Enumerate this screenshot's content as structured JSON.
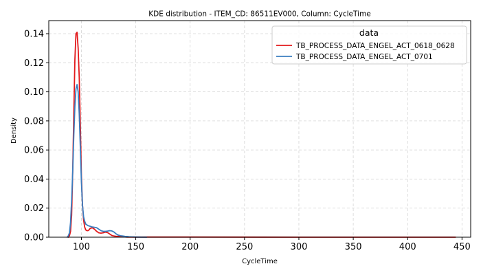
{
  "chart_data": {
    "type": "line",
    "title": "KDE distribution - ITEM_CD: 86511EV000, Column: CycleTime",
    "xlabel": "CycleTime",
    "ylabel": "Density",
    "xlim": [
      70,
      458
    ],
    "ylim": [
      0,
      0.149
    ],
    "xticks": [
      100,
      150,
      200,
      250,
      300,
      350,
      400,
      450
    ],
    "yticks": [
      0.0,
      0.02,
      0.04,
      0.06,
      0.08,
      0.1,
      0.12,
      0.14
    ],
    "grid": true,
    "legend": {
      "title": "data",
      "position": "top-right"
    },
    "series": [
      {
        "name": "TB_PROCESS_DATA_ENGEL_ACT_0618_0628",
        "color": "#e31a1c",
        "x": [
          88,
          89,
          90,
          91,
          92,
          93,
          94,
          95,
          96,
          97,
          98,
          99,
          100,
          101,
          102,
          103,
          104,
          105,
          106,
          107,
          108,
          110,
          112,
          114,
          116,
          118,
          120,
          122,
          124,
          126,
          128,
          130,
          132,
          134,
          136,
          138,
          140,
          142,
          145,
          150,
          160,
          200,
          300,
          400,
          444
        ],
        "y": [
          0.0,
          0.001,
          0.004,
          0.015,
          0.045,
          0.085,
          0.122,
          0.14,
          0.141,
          0.13,
          0.11,
          0.078,
          0.042,
          0.022,
          0.012,
          0.007,
          0.005,
          0.0045,
          0.0045,
          0.005,
          0.006,
          0.0065,
          0.0055,
          0.004,
          0.003,
          0.0028,
          0.003,
          0.0035,
          0.0032,
          0.0022,
          0.0012,
          0.0008,
          0.0006,
          0.0006,
          0.0005,
          0.0003,
          0.0002,
          0.0001,
          0.0001,
          0.0001,
          0.0001,
          0.0001,
          0.0,
          0.0,
          0.0
        ]
      },
      {
        "name": "TB_PROCESS_DATA_ENGEL_ACT_0701",
        "color": "#3b7ec0",
        "x": [
          87,
          88,
          89,
          90,
          91,
          92,
          93,
          94,
          95,
          96,
          97,
          98,
          99,
          100,
          101,
          102,
          103,
          104,
          105,
          106,
          108,
          110,
          112,
          114,
          116,
          118,
          120,
          122,
          124,
          126,
          128,
          130,
          132,
          134,
          136,
          138,
          140,
          142,
          144,
          146,
          150,
          160
        ],
        "y": [
          0.0,
          0.001,
          0.003,
          0.01,
          0.025,
          0.045,
          0.07,
          0.09,
          0.102,
          0.105,
          0.1,
          0.085,
          0.062,
          0.038,
          0.022,
          0.014,
          0.011,
          0.009,
          0.0085,
          0.008,
          0.0075,
          0.007,
          0.0068,
          0.0065,
          0.0055,
          0.0045,
          0.004,
          0.004,
          0.0042,
          0.0045,
          0.0043,
          0.0035,
          0.0022,
          0.0014,
          0.001,
          0.0008,
          0.0006,
          0.0005,
          0.0003,
          0.0002,
          0.0001,
          0.0
        ]
      }
    ]
  }
}
